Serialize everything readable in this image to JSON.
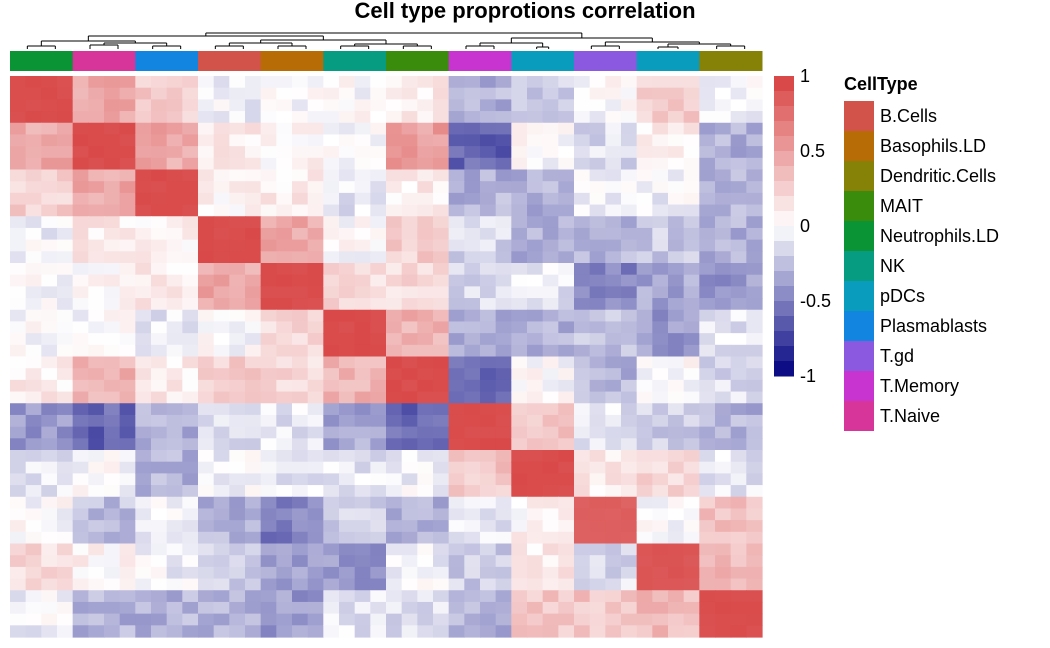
{
  "chart_data": {
    "type": "heatmap",
    "title": "Cell type proprotions correlation",
    "colorbar": {
      "ticks": [
        "1",
        "0.5",
        "0",
        "-0.5",
        "-1"
      ],
      "min": -1,
      "max": 1,
      "colors": {
        "low": "#000080",
        "mid": "#ffffff",
        "high": "#d73f3f"
      }
    },
    "legend": {
      "title": "CellType",
      "placement": "right",
      "items": [
        {
          "label": "B.Cells",
          "color": "#d1534a"
        },
        {
          "label": "Basophils.LD",
          "color": "#b86c06"
        },
        {
          "label": "Dendritic.Cells",
          "color": "#868208"
        },
        {
          "label": "MAIT",
          "color": "#3a8c0c"
        },
        {
          "label": "Neutrophils.LD",
          "color": "#0b9436"
        },
        {
          "label": "NK",
          "color": "#069c82"
        },
        {
          "label": "pDCs",
          "color": "#0a9cbc"
        },
        {
          "label": "Plasmablasts",
          "color": "#1285e0"
        },
        {
          "label": "T.gd",
          "color": "#8a59e0"
        },
        {
          "label": "T.Memory",
          "color": "#c734cf"
        },
        {
          "label": "T.Naive",
          "color": "#d7359a"
        }
      ]
    },
    "block_order": [
      "Neutrophils.LD",
      "T.Naive",
      "Plasmablasts",
      "B.Cells",
      "Basophils.LD",
      "NK",
      "MAIT",
      "T.Memory",
      "pDCs",
      "T.gd",
      "pDCs",
      "Dendritic.Cells"
    ],
    "matrix": [
      [
        0.95,
        0.45,
        0.25,
        -0.05,
        0.0,
        0.0,
        0.1,
        -0.3,
        -0.2,
        0.0,
        0.25,
        -0.05
      ],
      [
        0.45,
        0.95,
        0.45,
        0.1,
        0.05,
        0.0,
        0.5,
        -0.6,
        0.0,
        -0.15,
        0.1,
        -0.3
      ],
      [
        0.25,
        0.45,
        0.95,
        0.05,
        0.1,
        -0.1,
        0.1,
        -0.3,
        -0.3,
        -0.05,
        -0.05,
        -0.3
      ],
      [
        -0.05,
        0.1,
        0.05,
        0.95,
        0.45,
        0.0,
        0.25,
        -0.15,
        -0.3,
        -0.3,
        -0.2,
        -0.3
      ],
      [
        0.0,
        0.05,
        0.1,
        0.45,
        0.95,
        0.2,
        0.2,
        -0.15,
        -0.1,
        -0.5,
        -0.35,
        -0.4
      ],
      [
        0.0,
        0.0,
        -0.1,
        0.0,
        0.2,
        0.95,
        0.4,
        -0.35,
        -0.3,
        -0.25,
        -0.4,
        -0.1
      ],
      [
        0.1,
        0.4,
        0.1,
        0.25,
        0.2,
        0.4,
        0.95,
        -0.55,
        0.0,
        -0.3,
        0.0,
        -0.15
      ],
      [
        -0.4,
        -0.6,
        -0.3,
        -0.15,
        -0.1,
        -0.35,
        -0.6,
        0.95,
        0.3,
        -0.1,
        -0.2,
        -0.3
      ],
      [
        -0.1,
        0.0,
        -0.3,
        -0.05,
        -0.1,
        -0.1,
        -0.05,
        0.3,
        0.95,
        0.1,
        0.2,
        -0.1
      ],
      [
        0.0,
        -0.25,
        -0.05,
        -0.3,
        -0.5,
        -0.2,
        -0.3,
        -0.1,
        0.05,
        0.85,
        0.0,
        0.3
      ],
      [
        0.2,
        0.05,
        -0.05,
        -0.2,
        -0.35,
        -0.4,
        -0.05,
        -0.2,
        0.1,
        -0.15,
        0.9,
        0.35
      ],
      [
        -0.05,
        -0.3,
        -0.3,
        -0.3,
        -0.4,
        -0.1,
        -0.15,
        -0.3,
        0.3,
        0.3,
        0.35,
        0.95
      ]
    ]
  }
}
